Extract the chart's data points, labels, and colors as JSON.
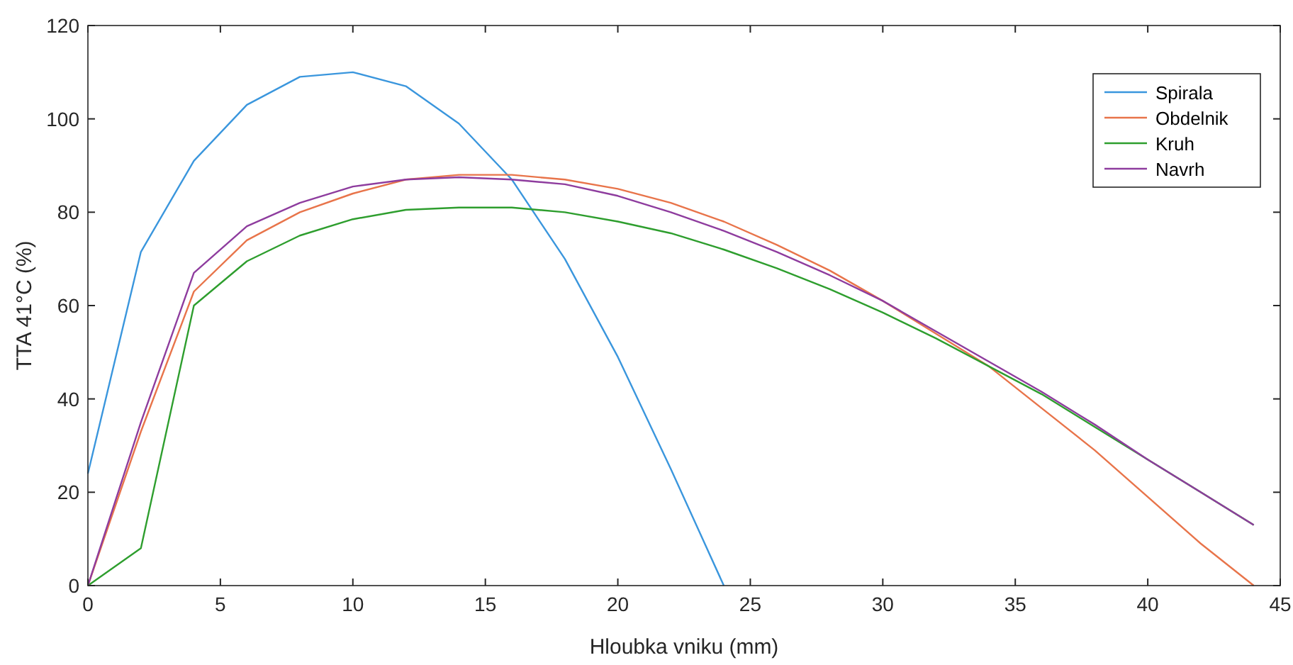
{
  "chart_data": {
    "type": "line",
    "xlabel": "Hloubka vniku (mm)",
    "ylabel": "TTA 41°C (%)",
    "xlim": [
      0,
      45
    ],
    "ylim": [
      0,
      120
    ],
    "xticks": [
      0,
      5,
      10,
      15,
      20,
      25,
      30,
      35,
      40,
      45
    ],
    "yticks": [
      0,
      20,
      40,
      60,
      80,
      100,
      120
    ],
    "grid": false,
    "legend": "top right",
    "marker": "none",
    "line_style": "solid",
    "series": [
      {
        "name": "Spirala",
        "color": "#3a96dd",
        "x": [
          0,
          2,
          4,
          6,
          8,
          10,
          12,
          14,
          16,
          18,
          20,
          22,
          24
        ],
        "values": [
          24,
          71.5,
          91,
          103,
          109,
          110,
          107,
          99,
          87,
          70,
          49,
          25,
          0
        ]
      },
      {
        "name": "Obdelnik",
        "color": "#e8744a",
        "x": [
          0,
          2,
          4,
          6,
          8,
          10,
          12,
          14,
          16,
          18,
          20,
          22,
          24,
          26,
          28,
          30,
          32,
          34,
          36,
          38,
          40,
          42,
          44
        ],
        "values": [
          0,
          33,
          63,
          74,
          80,
          84,
          87,
          88,
          88,
          87,
          85,
          82,
          78,
          73,
          67.5,
          61,
          54,
          47,
          38,
          29,
          19,
          9,
          0
        ]
      },
      {
        "name": "Kruh",
        "color": "#2e9e2e",
        "x": [
          0,
          2,
          4,
          6,
          8,
          10,
          12,
          14,
          16,
          18,
          20,
          22,
          24,
          26,
          28,
          30,
          32,
          34,
          36,
          38,
          40,
          42,
          44
        ],
        "values": [
          0,
          8,
          60,
          69.5,
          75,
          78.5,
          80.5,
          81,
          81,
          80,
          78,
          75.5,
          72,
          68,
          63.5,
          58.5,
          53,
          47,
          41,
          34,
          27,
          20,
          13
        ]
      },
      {
        "name": "Navrh",
        "color": "#8e3c9e",
        "x": [
          0,
          2,
          4,
          6,
          8,
          10,
          12,
          14,
          16,
          18,
          20,
          22,
          24,
          26,
          28,
          30,
          32,
          34,
          36,
          38,
          40,
          42,
          44
        ],
        "values": [
          0,
          35,
          67,
          77,
          82,
          85.5,
          87,
          87.5,
          87,
          86,
          83.5,
          80,
          76,
          71.5,
          66.5,
          61,
          54.5,
          48,
          41.5,
          34.5,
          27,
          20,
          13
        ]
      }
    ]
  }
}
